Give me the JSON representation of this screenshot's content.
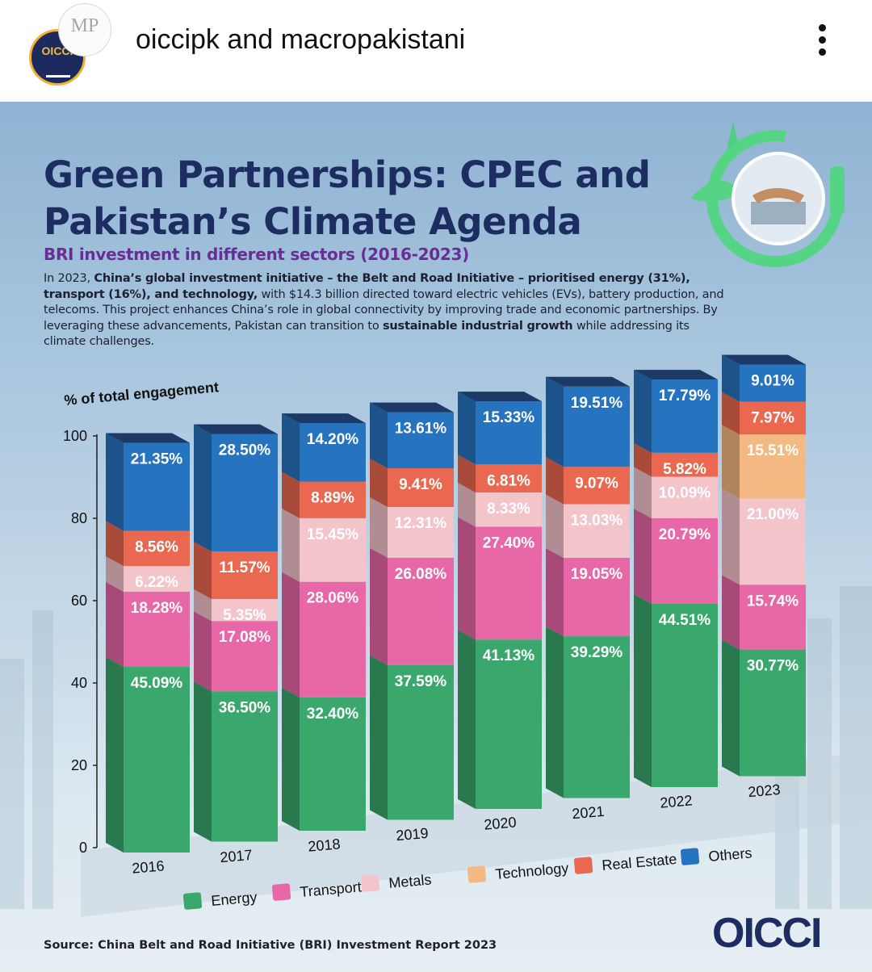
{
  "header": {
    "account_primary": "oiccipk",
    "connector": "and",
    "account_secondary": "macropakistani",
    "avatar_primary_text": "OICCI",
    "avatar_secondary_text": "MP",
    "menu_icon": "more-vertical-icon"
  },
  "poster": {
    "title_line1": "Green Partnerships: CPEC and",
    "title_line2": "Pakistan’s Climate Agenda",
    "subtitle": "BRI investment in different sectors (2016-2023)",
    "description": {
      "p1": "In 2023, ",
      "b1": "China’s global investment initiative – the Belt and Road Initiative – prioritised energy (31%), transport (16%), and technology,",
      "p2": " with $14.3 billion directed toward electric vehicles (EVs), battery production, and telecoms. This project enhances China’s role in global connectivity by improving trade and economic partnerships. By leveraging these advancements, Pakistan can transition to ",
      "b2": "sustainable industrial growth",
      "p3": " while addressing its climate challenges."
    },
    "source": "Source: China Belt and Road Initiative (BRI) Investment Report 2023",
    "brand": "OICCI"
  },
  "chart_data": {
    "type": "bar",
    "stacked": true,
    "ylabel": "% of total engagement",
    "ylim": [
      0,
      100
    ],
    "yticks": [
      0,
      20,
      40,
      60,
      80,
      100
    ],
    "categories": [
      "2016",
      "2017",
      "2018",
      "2019",
      "2020",
      "2021",
      "2022",
      "2023"
    ],
    "legend_position": "bottom",
    "series": [
      {
        "name": "Energy",
        "color": "#3aa86d",
        "values": [
          45.09,
          36.5,
          32.4,
          37.59,
          41.13,
          39.29,
          44.51,
          30.77
        ],
        "labels": [
          "45.09%",
          "36.50%",
          "32.40%",
          "37.59%",
          "41.13%",
          "39.29%",
          "44.51%",
          "30.77%"
        ]
      },
      {
        "name": "Transport",
        "color": "#e867a6",
        "values": [
          18.28,
          17.08,
          28.06,
          26.08,
          27.4,
          19.05,
          20.79,
          15.74
        ],
        "labels": [
          "18.28%",
          "17.08%",
          "28.06%",
          "26.08%",
          "27.40%",
          "19.05%",
          "20.79%",
          "15.74%"
        ]
      },
      {
        "name": "Metals",
        "color": "#f4c4cb",
        "values": [
          6.22,
          5.35,
          15.45,
          12.31,
          8.33,
          13.03,
          10.09,
          21.0
        ],
        "labels": [
          "6.22%",
          "5.35%",
          "15.45%",
          "12.31%",
          "8.33%",
          "13.03%",
          "10.09%",
          "21.00%"
        ]
      },
      {
        "name": "Technology",
        "color": "#f4b982",
        "values": [
          0,
          0,
          0,
          0,
          0,
          0,
          0,
          15.51
        ],
        "labels": [
          "",
          "",
          "",
          "",
          "",
          "",
          "",
          "15.51%"
        ]
      },
      {
        "name": "Real Estate",
        "color": "#e9684f",
        "values": [
          8.56,
          11.57,
          8.89,
          9.41,
          6.81,
          9.07,
          5.82,
          7.97
        ],
        "labels": [
          "8.56%",
          "11.57%",
          "8.89%",
          "9.41%",
          "6.81%",
          "9.07%",
          "5.82%",
          "7.97%"
        ]
      },
      {
        "name": "Others",
        "color": "#2673c0",
        "values": [
          21.35,
          28.5,
          14.2,
          13.61,
          15.33,
          19.51,
          17.79,
          9.01
        ],
        "labels": [
          "21.35%",
          "28.50%",
          "14.20%",
          "13.61%",
          "15.33%",
          "19.51%",
          "17.79%",
          "9.01%"
        ]
      }
    ]
  }
}
